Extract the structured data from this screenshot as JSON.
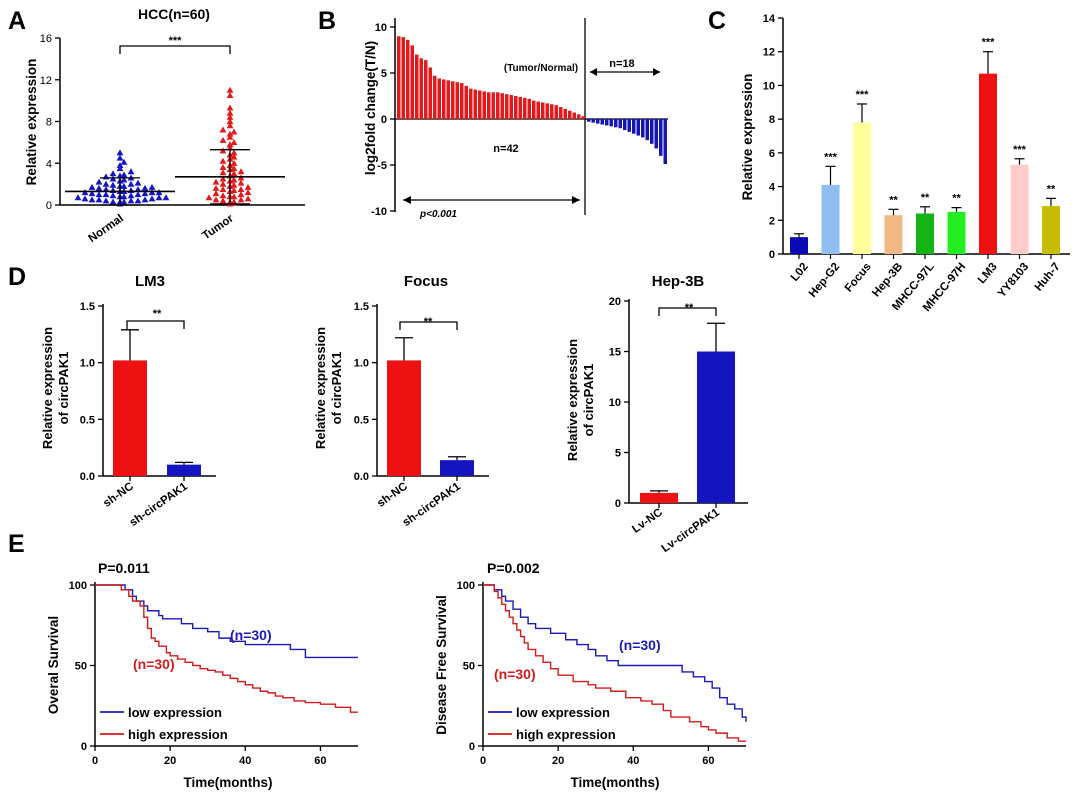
{
  "panels": {
    "A": {
      "letter": "A",
      "chart_data": {
        "type": "scatter",
        "title": "HCC(n=60)",
        "ylabel": "Relative expression",
        "ylim": [
          0,
          16
        ],
        "yticks": [
          "0",
          "4",
          "8",
          "12",
          "16"
        ],
        "categories": [
          "Normal",
          "Tumor"
        ],
        "significance": "***",
        "series": [
          {
            "name": "Normal",
            "color": "#1515c8",
            "marker": "triangle-up",
            "mean": 1.3,
            "sd": 1.3,
            "values": [
              0.1,
              0.2,
              0.2,
              0.3,
              0.3,
              0.3,
              0.4,
              0.4,
              0.4,
              0.5,
              0.5,
              0.5,
              0.6,
              0.6,
              0.7,
              0.7,
              0.7,
              0.8,
              0.8,
              0.9,
              0.9,
              1.0,
              1.0,
              1.0,
              1.1,
              1.1,
              1.2,
              1.2,
              1.2,
              1.3,
              1.3,
              1.4,
              1.4,
              1.5,
              1.5,
              1.6,
              1.6,
              1.7,
              1.7,
              1.8,
              1.8,
              1.9,
              2.0,
              2.0,
              2.1,
              2.2,
              2.3,
              2.4,
              2.5,
              2.6,
              2.7,
              2.8,
              2.9,
              3.0,
              3.2,
              3.5,
              3.8,
              4.1,
              4.5,
              5.0
            ]
          },
          {
            "name": "Tumor",
            "color": "#e31a1c",
            "marker": "triangle-up",
            "mean": 2.7,
            "sd": 2.6,
            "values": [
              0.1,
              0.2,
              0.3,
              0.3,
              0.4,
              0.5,
              0.5,
              0.6,
              0.7,
              0.8,
              0.8,
              0.9,
              1.0,
              1.1,
              1.2,
              1.3,
              1.4,
              1.5,
              1.5,
              1.6,
              1.7,
              1.8,
              1.9,
              2.0,
              2.1,
              2.2,
              2.3,
              2.4,
              2.5,
              2.6,
              2.8,
              3.0,
              3.1,
              3.2,
              3.4,
              3.5,
              3.6,
              3.8,
              4.0,
              4.2,
              4.4,
              4.6,
              4.8,
              5.0,
              5.2,
              5.5,
              5.8,
              6.0,
              6.2,
              6.5,
              6.8,
              7.0,
              7.2,
              7.6,
              8.0,
              8.4,
              8.8,
              9.3,
              10.5,
              11.0
            ]
          }
        ]
      }
    },
    "B": {
      "letter": "B",
      "chart_data": {
        "type": "bar",
        "ylabel": "log2fold change(T/N)",
        "ylim": [
          -10,
          10
        ],
        "yticks": [
          "-10",
          "-5",
          "0",
          "5",
          "10"
        ],
        "up_color": "#e31a1c",
        "down_color": "#1515b0",
        "up_values": [
          9.0,
          8.9,
          8.6,
          8.0,
          7.0,
          6.6,
          6.4,
          5.6,
          4.7,
          4.4,
          4.3,
          4.2,
          4.1,
          4.0,
          3.9,
          3.6,
          3.3,
          3.2,
          3.1,
          3.0,
          2.9,
          2.9,
          2.9,
          2.8,
          2.7,
          2.6,
          2.5,
          2.4,
          2.3,
          2.2,
          2.0,
          1.9,
          1.8,
          1.7,
          1.6,
          1.5,
          1.3,
          1.1,
          0.9,
          0.7,
          0.5,
          0.3
        ],
        "down_values": [
          -0.3,
          -0.4,
          -0.5,
          -0.6,
          -0.7,
          -0.8,
          -0.9,
          -1.0,
          -1.2,
          -1.4,
          -1.6,
          -1.8,
          -2.0,
          -2.3,
          -2.7,
          -3.2,
          -4.0,
          -4.9
        ],
        "labels": {
          "ratio": "(Tumor/Normal)",
          "n_up": "n=42",
          "n_down": "n=18",
          "p": "p<0.001"
        }
      }
    },
    "C": {
      "letter": "C",
      "chart_data": {
        "type": "bar",
        "ylabel": "Relative expression",
        "ylim": [
          0,
          14
        ],
        "yticks": [
          "0",
          "2",
          "4",
          "6",
          "8",
          "10",
          "12",
          "14"
        ],
        "categories": [
          "L02",
          "Hep-G2",
          "Focus",
          "Hep-3B",
          "MHCC-97L",
          "MHCC-97H",
          "LM3",
          "YY8103",
          "Huh-7"
        ],
        "values": [
          1.0,
          4.1,
          7.8,
          2.3,
          2.4,
          2.5,
          10.7,
          5.3,
          2.85
        ],
        "errors": [
          0.2,
          1.1,
          1.1,
          0.35,
          0.4,
          0.25,
          1.3,
          0.35,
          0.45
        ],
        "significance": [
          "",
          "***",
          "***",
          "**",
          "**",
          "**",
          "***",
          "***",
          "**"
        ],
        "colors": [
          "#0a0ab4",
          "#90bdf2",
          "#ffff9c",
          "#f0b882",
          "#13b413",
          "#22ee22",
          "#ee1111",
          "#ffcccc",
          "#c8bc00"
        ]
      }
    },
    "D": {
      "letter": "D",
      "charts": [
        {
          "type": "bar",
          "title": "LM3",
          "ylabel1": "Relative expression",
          "ylabel2": "of circPAK1",
          "ylim": [
            0,
            1.5
          ],
          "yticks": [
            "0.0",
            "0.5",
            "1.0",
            "1.5"
          ],
          "categories": [
            "sh-NC",
            "sh-circPAK1"
          ],
          "values": [
            1.02,
            0.1
          ],
          "errors": [
            0.27,
            0.02
          ],
          "colors": [
            "#ee1111",
            "#1515c0"
          ],
          "significance": "**"
        },
        {
          "type": "bar",
          "title": "Focus",
          "ylabel1": "Relative expression",
          "ylabel2": "of circPAK1",
          "ylim": [
            0,
            1.5
          ],
          "yticks": [
            "0.0",
            "0.5",
            "1.0",
            "1.5"
          ],
          "categories": [
            "sh-NC",
            "sh-circPAK1"
          ],
          "values": [
            1.02,
            0.14
          ],
          "errors": [
            0.2,
            0.03
          ],
          "colors": [
            "#ee1111",
            "#1515c0"
          ],
          "significance": "**"
        },
        {
          "type": "bar",
          "title": "Hep-3B",
          "ylabel1": "Relative expression",
          "ylabel2": "of circPAK1",
          "ylim": [
            0,
            20
          ],
          "yticks": [
            "0",
            "5",
            "10",
            "15",
            "20"
          ],
          "categories": [
            "Lv-NC",
            "Lv-circPAK1"
          ],
          "values": [
            1.0,
            15.0
          ],
          "errors": [
            0.2,
            2.8
          ],
          "colors": [
            "#ee1111",
            "#1515c0"
          ],
          "significance": "**"
        }
      ]
    },
    "E": {
      "letter": "E",
      "charts": [
        {
          "type": "line",
          "pvalue": "P=0.011",
          "ylabel": "Overal Survival",
          "xlabel": "Time(months)",
          "xlim": [
            0,
            70
          ],
          "ylim": [
            0,
            100
          ],
          "xticks": [
            "0",
            "20",
            "40",
            "60"
          ],
          "yticks": [
            "0",
            "50",
            "100"
          ],
          "series": [
            {
              "name": "low expression",
              "n": "(n=30)",
              "color": "#1a1ab8",
              "x": [
                0,
                5,
                8,
                10,
                11,
                13,
                14,
                15,
                17,
                18,
                20,
                23,
                26,
                30,
                33,
                36,
                38,
                40,
                43,
                45,
                50,
                52,
                56,
                70
              ],
              "y": [
                100,
                100,
                97,
                93,
                90,
                87,
                84,
                84,
                81,
                79,
                79,
                76,
                73,
                71,
                67,
                65,
                65,
                63,
                63,
                63,
                63,
                60,
                55,
                55
              ]
            },
            {
              "name": "high expression",
              "n": "(n=30)",
              "color": "#d41a1a",
              "x": [
                0,
                7,
                9,
                10,
                12,
                13,
                14,
                15,
                16,
                17,
                19,
                20,
                22,
                24,
                26,
                28,
                30,
                32,
                34,
                36,
                38,
                40,
                42,
                44,
                46,
                48,
                50,
                53,
                56,
                60,
                64,
                68,
                70
              ],
              "y": [
                100,
                97,
                93,
                90,
                87,
                80,
                73,
                67,
                65,
                62,
                58,
                56,
                54,
                52,
                50,
                48,
                47,
                46,
                44,
                42,
                40,
                38,
                36,
                34,
                33,
                31,
                30,
                28,
                27,
                26,
                24,
                21,
                21
              ]
            }
          ]
        },
        {
          "type": "line",
          "pvalue": "P=0.002",
          "ylabel": "Disease Free Survival",
          "xlabel": "Time(months)",
          "xlim": [
            0,
            70
          ],
          "ylim": [
            0,
            100
          ],
          "xticks": [
            "0",
            "20",
            "40",
            "60"
          ],
          "yticks": [
            "0",
            "50",
            "100"
          ],
          "series": [
            {
              "name": "low expression",
              "n": "(n=30)",
              "color": "#1a1ab8",
              "x": [
                0,
                3,
                5,
                6,
                8,
                10,
                12,
                14,
                16,
                18,
                20,
                22,
                25,
                28,
                30,
                33,
                36,
                40,
                45,
                50,
                53,
                56,
                59,
                61,
                63,
                65,
                67,
                69,
                70
              ],
              "y": [
                100,
                97,
                93,
                90,
                85,
                80,
                76,
                73,
                73,
                70,
                70,
                66,
                63,
                60,
                56,
                53,
                50,
                50,
                50,
                50,
                46,
                43,
                40,
                36,
                30,
                26,
                23,
                18,
                15
              ]
            },
            {
              "name": "high expression",
              "n": "(n=30)",
              "color": "#d41a1a",
              "x": [
                0,
                3,
                4,
                5,
                6,
                7,
                8,
                9,
                10,
                11,
                12,
                14,
                16,
                18,
                20,
                24,
                28,
                30,
                34,
                38,
                42,
                45,
                48,
                50,
                55,
                58,
                60,
                62,
                65,
                68,
                70
              ],
              "y": [
                100,
                96,
                92,
                88,
                84,
                80,
                76,
                72,
                68,
                64,
                60,
                56,
                52,
                48,
                44,
                40,
                38,
                36,
                34,
                30,
                28,
                26,
                22,
                18,
                15,
                12,
                10,
                8,
                5,
                3,
                3
              ]
            }
          ]
        }
      ]
    }
  }
}
